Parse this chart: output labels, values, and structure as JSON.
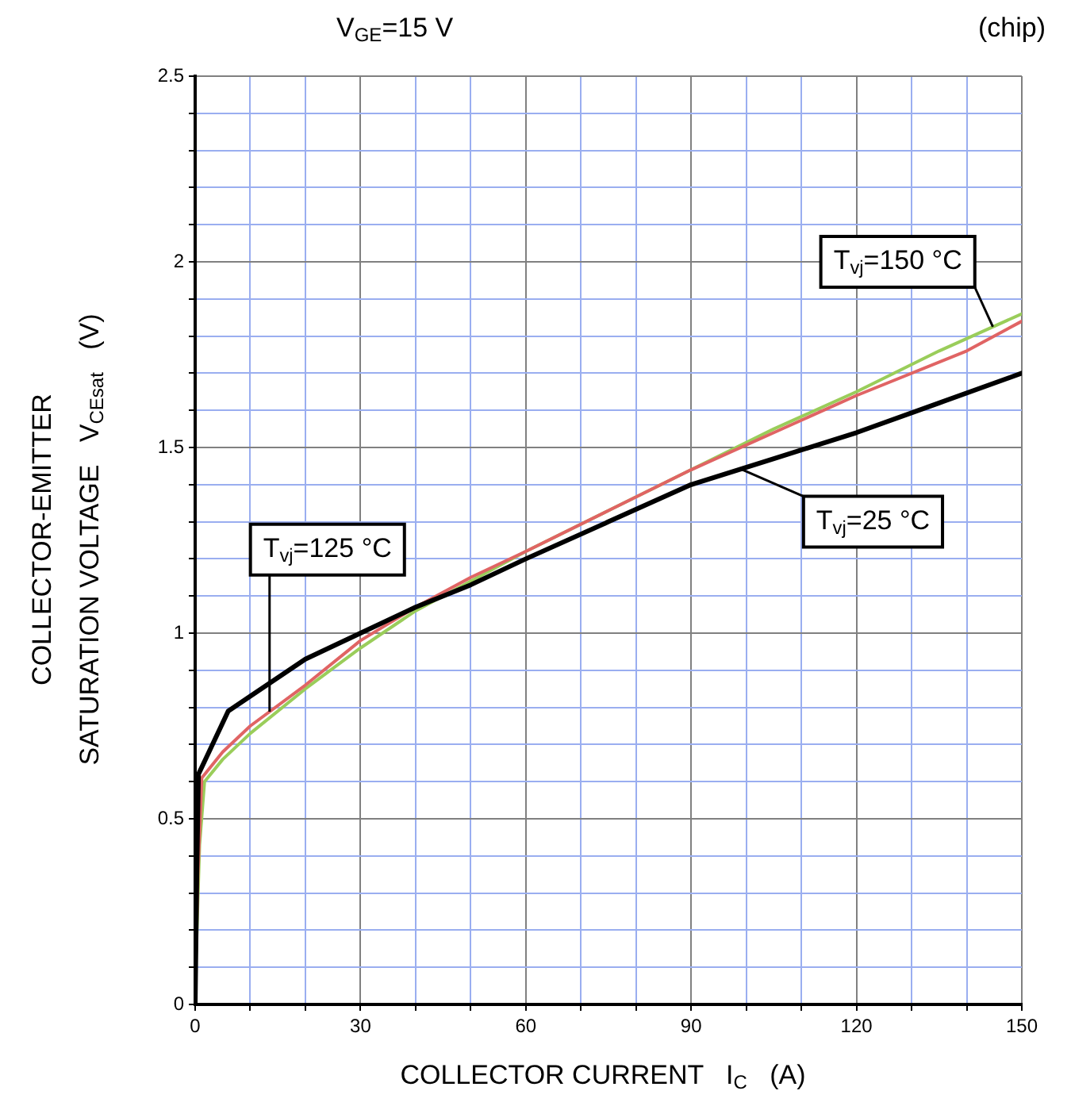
{
  "chart_data": {
    "type": "line",
    "title": "V$_{GE}$=15 V",
    "xlabel": "COLLECTOR CURRENT   I$_{C}$   (A)",
    "ylabel": "COLLECTOR-EMITTER\nSATURATION VOLTAGE   V$_{CEsat}$   (V)",
    "annotations": [
      "(chip)"
    ],
    "xlim": [
      0,
      150
    ],
    "ylim": [
      0,
      2.5
    ],
    "xticks": [
      0,
      {
        "value": 10,
        "label": null
      },
      {
        "value": 20,
        "label": null
      },
      30,
      {
        "value": 40,
        "label": null
      },
      {
        "value": 50,
        "label": null
      },
      60,
      {
        "value": 70,
        "label": null
      },
      {
        "value": 80,
        "label": null
      },
      90,
      {
        "value": 100,
        "label": null
      },
      {
        "value": 110,
        "label": null
      },
      120,
      {
        "value": 130,
        "label": null
      },
      {
        "value": 140,
        "label": null
      },
      150
    ],
    "yticks": [
      0,
      {
        "value": 0.1,
        "label": null
      },
      {
        "value": 0.2,
        "label": null
      },
      {
        "value": 0.3,
        "label": null
      },
      {
        "value": 0.4,
        "label": null
      },
      0.5,
      {
        "value": 0.6,
        "label": null
      },
      {
        "value": 0.7,
        "label": null
      },
      {
        "value": 0.8,
        "label": null
      },
      {
        "value": 0.9,
        "label": null
      },
      1,
      {
        "value": 1.1,
        "label": null
      },
      {
        "value": 1.2,
        "label": null
      },
      {
        "value": 1.3,
        "label": null
      },
      {
        "value": 1.4,
        "label": null
      },
      1.5,
      {
        "value": 1.6,
        "label": null
      },
      {
        "value": 1.7,
        "label": null
      },
      {
        "value": 1.8,
        "label": null
      },
      {
        "value": 1.9,
        "label": null
      },
      2,
      {
        "value": 2.1,
        "label": null
      },
      {
        "value": 2.2,
        "label": null
      },
      {
        "value": 2.3,
        "label": null
      },
      {
        "value": 2.4,
        "label": null
      },
      2.5
    ],
    "grid": true,
    "legend": false,
    "marker": "none",
    "line_style": "solid",
    "series": [
      {
        "name": "T$_{vj}$=25 °C",
        "color": "#000000",
        "x": [
          0,
          0.3,
          0.6,
          6,
          10,
          20,
          30,
          40,
          50,
          60,
          75,
          90,
          105,
          120,
          135,
          150
        ],
        "values": [
          0,
          0.36,
          0.62,
          0.79,
          0.83,
          0.93,
          1.0,
          1.07,
          1.13,
          1.2,
          1.3,
          1.4,
          1.47,
          1.54,
          1.62,
          1.7
        ]
      },
      {
        "name": "T$_{vj}$=125 °C",
        "color": "#e06464",
        "x": [
          0,
          0.5,
          1.2,
          5,
          10,
          20,
          30,
          40,
          50,
          60,
          75,
          90,
          105,
          120,
          140,
          150
        ],
        "values": [
          0.05,
          0.35,
          0.61,
          0.68,
          0.75,
          0.86,
          0.98,
          1.07,
          1.15,
          1.22,
          1.33,
          1.44,
          1.54,
          1.64,
          1.76,
          1.84
        ]
      },
      {
        "name": "T$_{vj}$=150 °C",
        "color": "#9acd5a",
        "x": [
          0,
          0.8,
          1.7,
          5,
          10,
          20,
          30,
          40,
          50,
          60,
          75,
          90,
          105,
          120,
          135,
          150
        ],
        "values": [
          0.05,
          0.43,
          0.6,
          0.66,
          0.73,
          0.85,
          0.96,
          1.06,
          1.14,
          1.22,
          1.33,
          1.44,
          1.55,
          1.65,
          1.76,
          1.86
        ]
      }
    ]
  }
}
